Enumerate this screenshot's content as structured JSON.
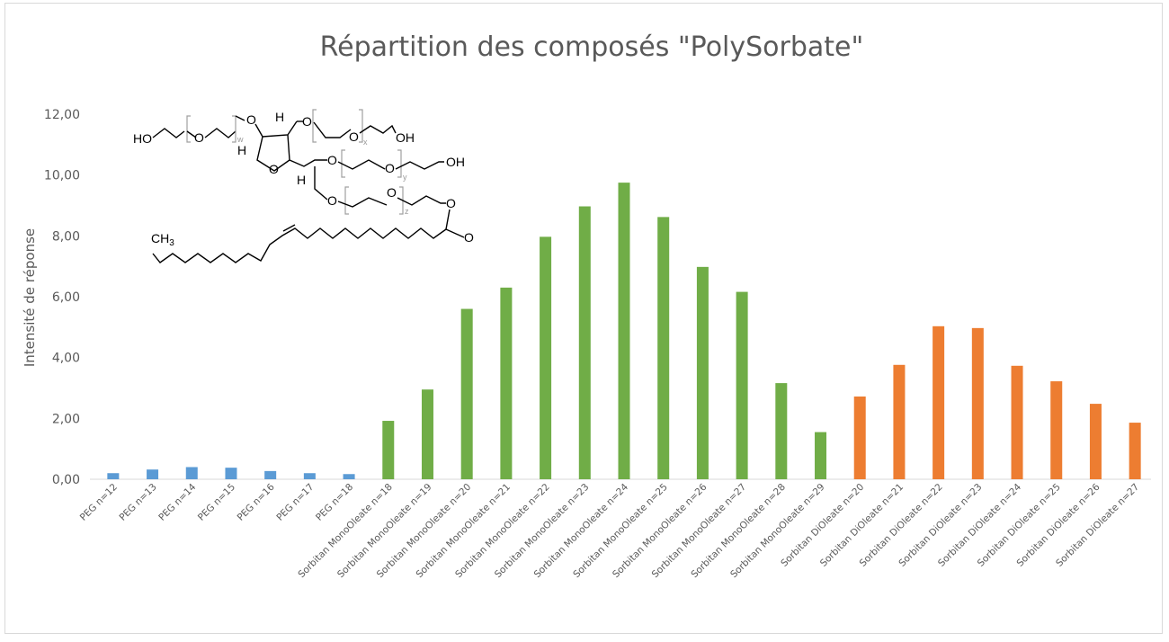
{
  "chart_data": {
    "type": "bar",
    "title": "Répartition des composés \"PolySorbate\"",
    "ylabel": "Intensité de réponse",
    "xlabel": "",
    "ylim": [
      0,
      12
    ],
    "yticks": [
      "0,00",
      "2,00",
      "4,00",
      "6,00",
      "8,00",
      "10,00",
      "12,00"
    ],
    "grid": false,
    "legend": "none",
    "categories": [
      "PEG n=12",
      "PEG n=13",
      "PEG n=14",
      "PEG n=15",
      "PEG n=16",
      "PEG n=17",
      "PEG n=18",
      "Sorbitan MonoOleate n=18",
      "Sorbitan MonoOleate n=19",
      "Sorbitan MonoOleate n=20",
      "Sorbitan MonoOleate n=21",
      "Sorbitan MonoOleate n=22",
      "Sorbitan MonoOleate n=23",
      "Sorbitan MonoOleate n=24",
      "Sorbitan MonoOleate n=25",
      "Sorbitan MonoOleate n=26",
      "Sorbitan MonoOleate n=27",
      "Sorbitan MonoOleate n=28",
      "Sorbitan MonoOleate n=29",
      "Sorbitan DiOleate n=20",
      "Sorbitan DiOleate n=21",
      "Sorbitan DiOleate n=22",
      "Sorbitan DiOleate n=23",
      "Sorbitan DiOleate n=24",
      "Sorbitan DiOleate n=25",
      "Sorbitan DiOleate n=26",
      "Sorbitan DiOleate n=27"
    ],
    "values": [
      0.2,
      0.32,
      0.4,
      0.38,
      0.27,
      0.2,
      0.17,
      1.92,
      2.95,
      5.6,
      6.3,
      7.97,
      8.97,
      9.75,
      8.62,
      6.98,
      6.16,
      3.16,
      1.55,
      2.72,
      3.76,
      5.03,
      4.97,
      3.73,
      3.22,
      2.48,
      1.86
    ],
    "bar_colors": [
      "#5b9bd5",
      "#5b9bd5",
      "#5b9bd5",
      "#5b9bd5",
      "#5b9bd5",
      "#5b9bd5",
      "#5b9bd5",
      "#70ad47",
      "#70ad47",
      "#70ad47",
      "#70ad47",
      "#70ad47",
      "#70ad47",
      "#70ad47",
      "#70ad47",
      "#70ad47",
      "#70ad47",
      "#70ad47",
      "#70ad47",
      "#ed7d31",
      "#ed7d31",
      "#ed7d31",
      "#ed7d31",
      "#ed7d31",
      "#ed7d31",
      "#ed7d31",
      "#ed7d31"
    ]
  },
  "molecule": {
    "labels": {
      "ho_left": "HO",
      "ho_right": "OH",
      "oh_mid": "OH",
      "o_ring": "O",
      "h": "H",
      "ch3": "CH",
      "ch3_sub": "3",
      "sub_w": "w",
      "sub_x": "x",
      "sub_y": "y",
      "sub_z": "z"
    }
  }
}
